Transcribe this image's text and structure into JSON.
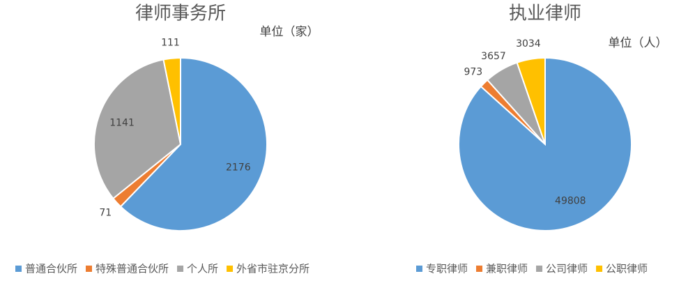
{
  "chart_data": [
    {
      "type": "pie",
      "title": "律师事务所",
      "unit_label": "单位（家）",
      "categories": [
        "普通合伙所",
        "特殊普通合伙所",
        "个人所",
        "外省市驻京分所"
      ],
      "values": [
        2176,
        71,
        1141,
        111
      ],
      "colors": [
        "#5b9bd5",
        "#ed7d31",
        "#a5a5a5",
        "#ffc000"
      ]
    },
    {
      "type": "pie",
      "title": "执业律师",
      "unit_label": "单位（人）",
      "categories": [
        "专职律师",
        "兼职律师",
        "公司律师",
        "公职律师"
      ],
      "values": [
        49808,
        973,
        3657,
        3034
      ],
      "colors": [
        "#5b9bd5",
        "#ed7d31",
        "#a5a5a5",
        "#ffc000"
      ]
    }
  ]
}
